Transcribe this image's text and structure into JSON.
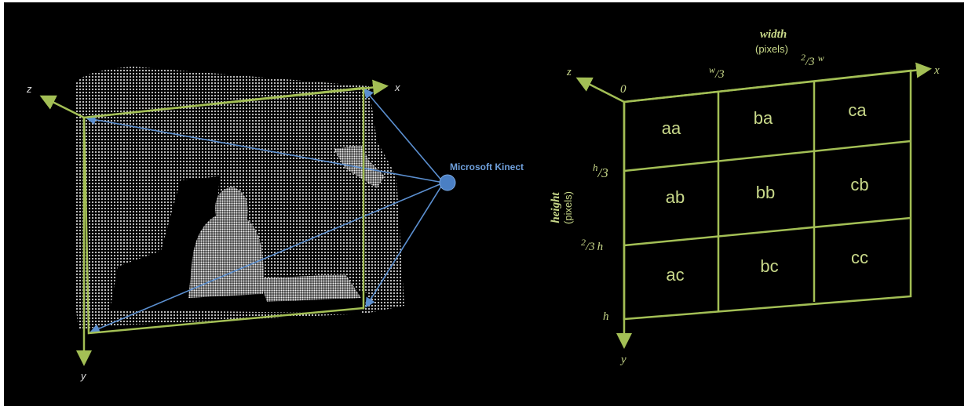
{
  "left": {
    "axis_z": "z",
    "axis_x": "x",
    "axis_y": "y",
    "sensor": "Microsoft Kinect"
  },
  "right": {
    "width_title": "width",
    "width_unit": "(pixels)",
    "height_title": "height",
    "height_unit": "(pixels)",
    "origin": "0",
    "axis_z": "z",
    "axis_x": "x",
    "axis_y": "y",
    "w_third": {
      "sup": "w",
      "rest": "/3"
    },
    "two_thirds_w": {
      "sup": "2",
      "rest": "/3",
      "tail": "w"
    },
    "h_third": {
      "sup": "h",
      "rest": "/3"
    },
    "two_thirds_h": {
      "sup": "2",
      "rest": "/3",
      "tail": "h"
    },
    "h": "h",
    "cells": [
      [
        "aa",
        "ba",
        "ca"
      ],
      [
        "ab",
        "bb",
        "cb"
      ],
      [
        "ac",
        "bc",
        "cc"
      ]
    ]
  }
}
